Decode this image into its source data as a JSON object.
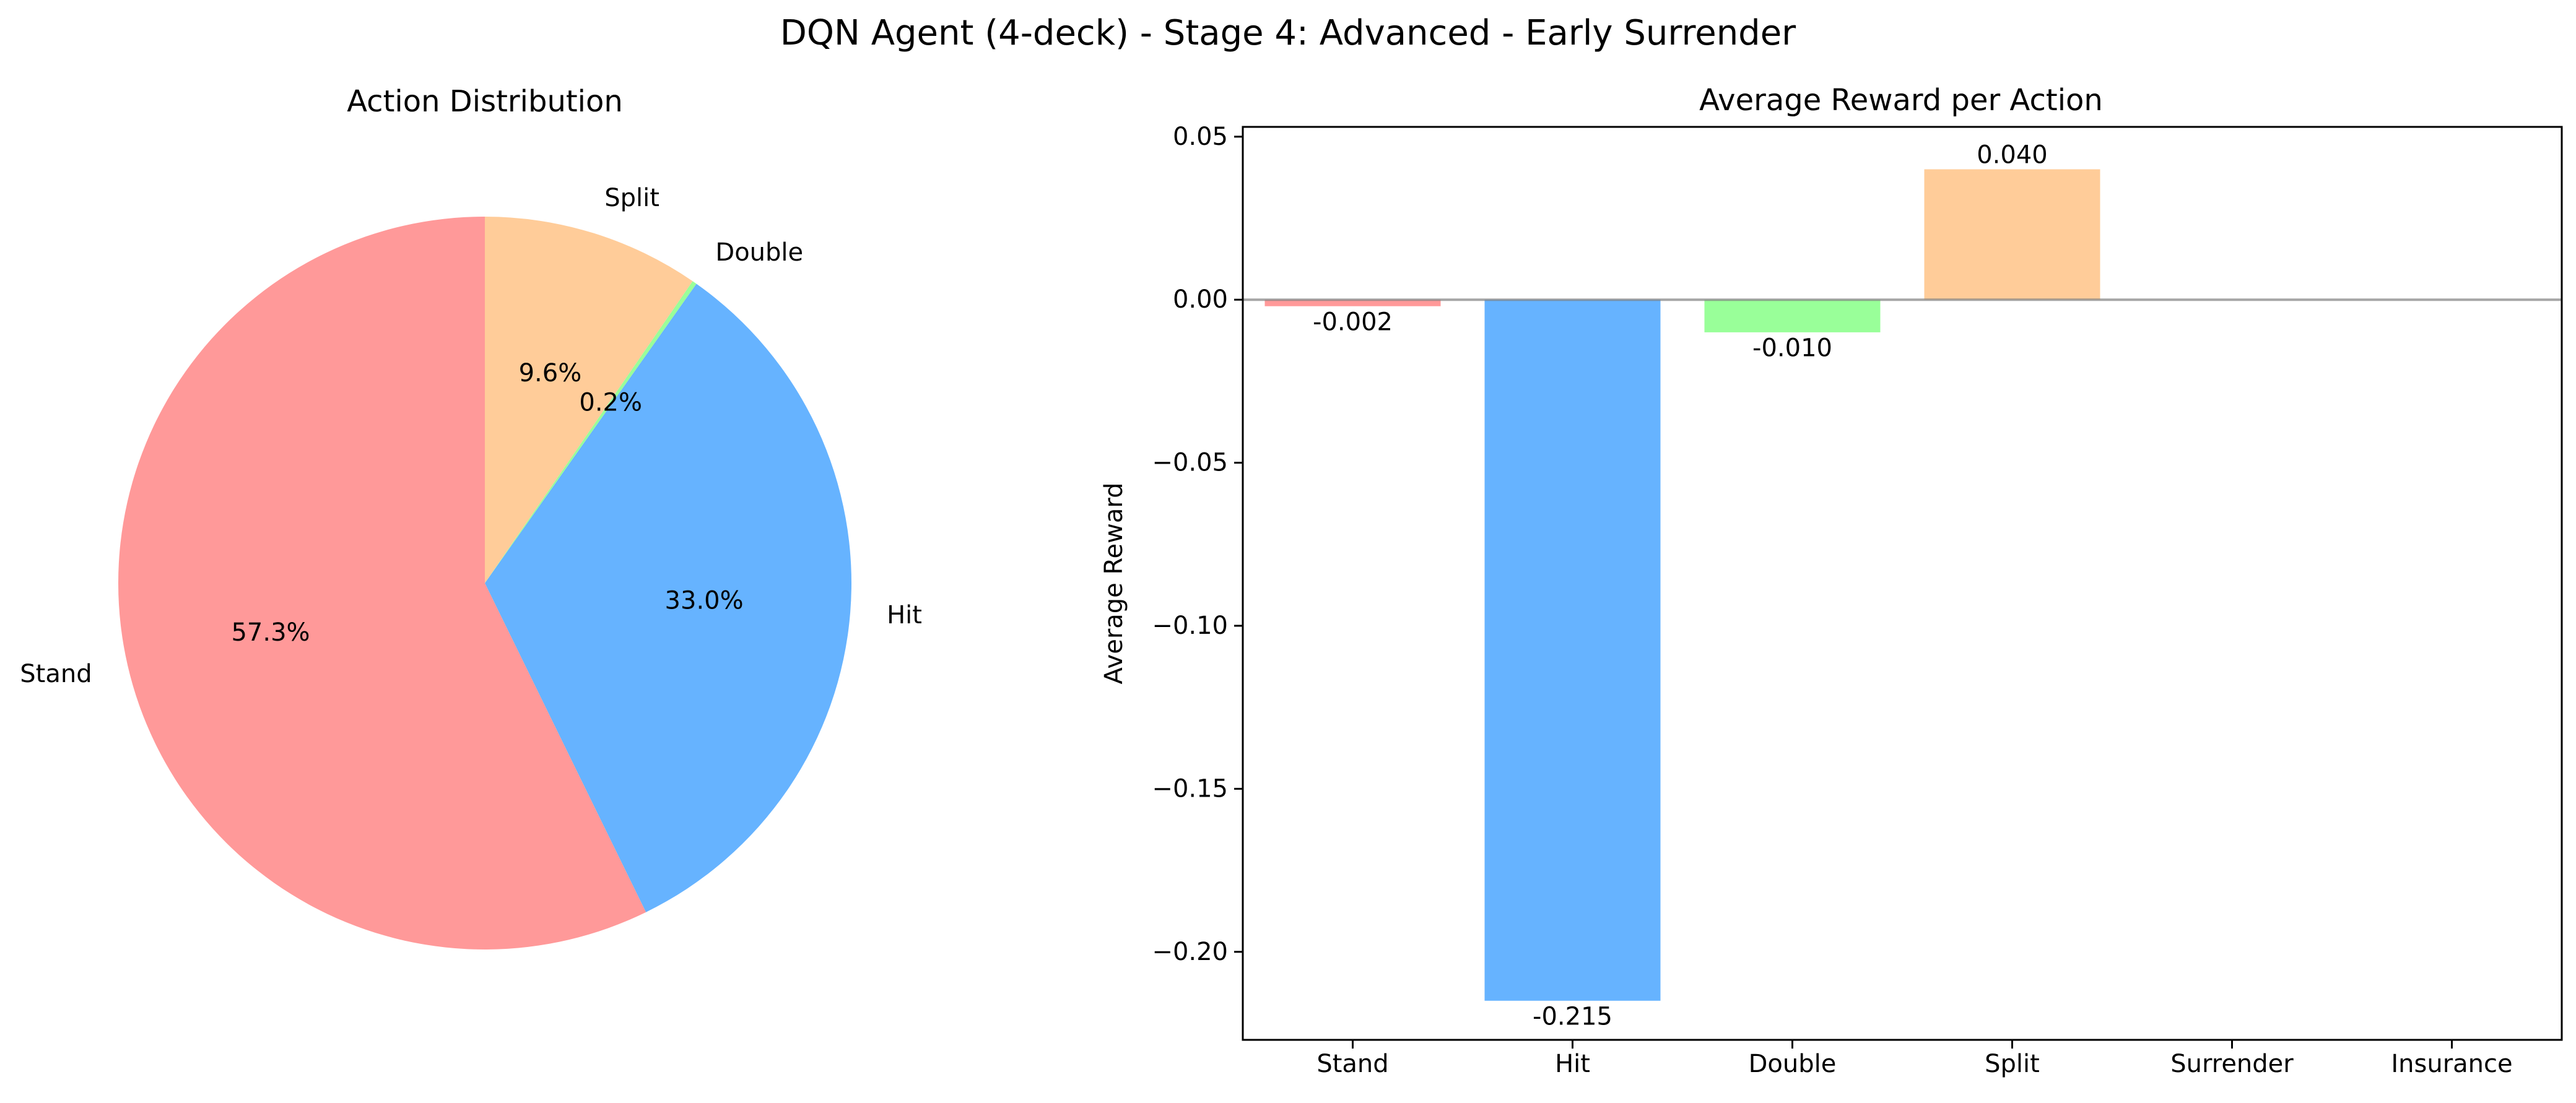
{
  "figure": {
    "title": "DQN Agent (4-deck) - Stage 4: Advanced - Early Surrender"
  },
  "chart_data": [
    {
      "type": "pie",
      "title": "Action Distribution",
      "labels": [
        "Stand",
        "Hit",
        "Double",
        "Split"
      ],
      "values": [
        57.3,
        33.0,
        0.2,
        9.6
      ],
      "value_labels": [
        "57.3%",
        "33.0%",
        "0.2%",
        "9.6%"
      ],
      "colors": [
        "#ff9999",
        "#66b3ff",
        "#99ff99",
        "#ffcc99"
      ],
      "start_angle": 90,
      "direction": "counterclockwise"
    },
    {
      "type": "bar",
      "title": "Average Reward per Action",
      "xlabel": "",
      "ylabel": "Average Reward",
      "categories": [
        "Stand",
        "Hit",
        "Double",
        "Split",
        "Surrender",
        "Insurance"
      ],
      "values": [
        -0.002,
        -0.215,
        -0.01,
        0.04,
        null,
        null
      ],
      "value_labels": [
        "-0.002",
        "-0.215",
        "-0.010",
        "0.040",
        "",
        ""
      ],
      "colors": [
        "#ff9999",
        "#66b3ff",
        "#99ff99",
        "#ffcc99",
        "",
        ""
      ],
      "ylim": [
        -0.227,
        0.053
      ],
      "yticks": [
        0.05,
        0.0,
        -0.05,
        -0.1,
        -0.15,
        -0.2
      ],
      "ytick_labels": [
        "0.05",
        "0.00",
        "−0.05",
        "−0.10",
        "−0.15",
        "−0.20"
      ],
      "zero_line": true,
      "grid": false
    }
  ]
}
